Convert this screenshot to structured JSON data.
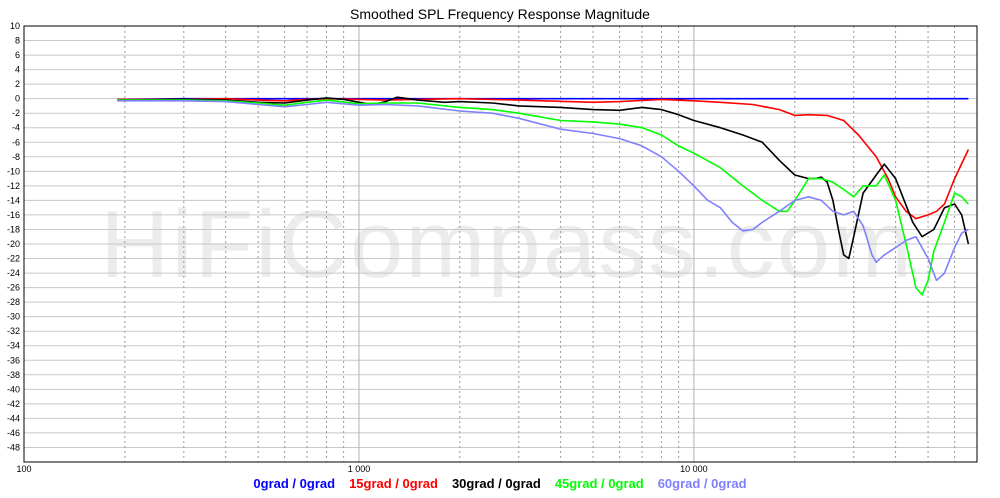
{
  "chart_data": {
    "type": "line",
    "title": "Smoothed SPL Frequency Response Magnitude",
    "xlabel": "",
    "ylabel": "",
    "x_scale": "log",
    "xlim": [
      100,
      70000
    ],
    "ylim": [
      -50,
      10
    ],
    "x_ticks": [
      {
        "value": 100,
        "label": "100"
      },
      {
        "value": 1000,
        "label": "1 000"
      },
      {
        "value": 10000,
        "label": "10 000"
      }
    ],
    "y_ticks": [
      10,
      8,
      6,
      4,
      2,
      0,
      -2,
      -4,
      -6,
      -8,
      -10,
      -12,
      -14,
      -16,
      -18,
      -20,
      -22,
      -24,
      -26,
      -28,
      -30,
      -32,
      -34,
      -36,
      -38,
      -40,
      -42,
      -44,
      -46,
      -48
    ],
    "grid": true,
    "legend_position": "bottom",
    "watermark": "HiFiCompass.com",
    "series": [
      {
        "name": "0grad / 0grad",
        "color": "#0000ff",
        "points": [
          [
            190,
            -0.1
          ],
          [
            300,
            0
          ],
          [
            500,
            0
          ],
          [
            1000,
            0
          ],
          [
            2000,
            0
          ],
          [
            5000,
            0
          ],
          [
            10000,
            0
          ],
          [
            20000,
            0
          ],
          [
            40000,
            0
          ],
          [
            66000,
            0
          ]
        ]
      },
      {
        "name": "15grad / 0grad",
        "color": "#ff0000",
        "points": [
          [
            190,
            -0.1
          ],
          [
            300,
            -0.1
          ],
          [
            400,
            0
          ],
          [
            500,
            -0.2
          ],
          [
            600,
            -0.3
          ],
          [
            700,
            -0.1
          ],
          [
            800,
            0
          ],
          [
            1000,
            -0.1
          ],
          [
            1200,
            -0.2
          ],
          [
            1500,
            -0.1
          ],
          [
            2000,
            0
          ],
          [
            3000,
            -0.2
          ],
          [
            5000,
            -0.5
          ],
          [
            6000,
            -0.4
          ],
          [
            8000,
            -0.1
          ],
          [
            10000,
            -0.3
          ],
          [
            12000,
            -0.5
          ],
          [
            15000,
            -0.8
          ],
          [
            18000,
            -1.5
          ],
          [
            20000,
            -2.3
          ],
          [
            22000,
            -2.2
          ],
          [
            25000,
            -2.3
          ],
          [
            28000,
            -3
          ],
          [
            31000,
            -5
          ],
          [
            35000,
            -8
          ],
          [
            38000,
            -11
          ],
          [
            40000,
            -13.5
          ],
          [
            43000,
            -15.5
          ],
          [
            46000,
            -16.5
          ],
          [
            50000,
            -16
          ],
          [
            53000,
            -15.5
          ],
          [
            56000,
            -14.5
          ],
          [
            60000,
            -11
          ],
          [
            66000,
            -7
          ]
        ]
      },
      {
        "name": "30grad / 0grad",
        "color": "#000000",
        "points": [
          [
            190,
            -0.2
          ],
          [
            300,
            -0.1
          ],
          [
            400,
            -0.2
          ],
          [
            500,
            -0.5
          ],
          [
            600,
            -0.6
          ],
          [
            700,
            -0.2
          ],
          [
            800,
            0.1
          ],
          [
            900,
            -0.1
          ],
          [
            1000,
            -0.5
          ],
          [
            1100,
            -0.8
          ],
          [
            1200,
            -0.4
          ],
          [
            1300,
            0.2
          ],
          [
            1500,
            -0.2
          ],
          [
            1800,
            -0.5
          ],
          [
            2000,
            -0.4
          ],
          [
            2500,
            -0.6
          ],
          [
            3000,
            -1
          ],
          [
            4000,
            -1.2
          ],
          [
            5000,
            -1.5
          ],
          [
            6000,
            -1.6
          ],
          [
            7000,
            -1.2
          ],
          [
            8000,
            -1.5
          ],
          [
            9000,
            -2.2
          ],
          [
            10000,
            -3
          ],
          [
            12000,
            -4
          ],
          [
            14000,
            -5
          ],
          [
            16000,
            -6
          ],
          [
            18000,
            -8.5
          ],
          [
            20000,
            -10.5
          ],
          [
            22000,
            -11
          ],
          [
            23000,
            -11
          ],
          [
            24000,
            -10.8
          ],
          [
            25000,
            -11.5
          ],
          [
            26000,
            -14
          ],
          [
            27000,
            -18
          ],
          [
            28000,
            -21.5
          ],
          [
            29000,
            -22
          ],
          [
            30000,
            -19
          ],
          [
            32000,
            -13
          ],
          [
            35000,
            -10.5
          ],
          [
            37000,
            -9
          ],
          [
            40000,
            -11
          ],
          [
            45000,
            -17
          ],
          [
            48000,
            -19
          ],
          [
            52000,
            -18
          ],
          [
            56000,
            -15
          ],
          [
            60000,
            -14.5
          ],
          [
            63000,
            -16
          ],
          [
            66000,
            -20
          ]
        ]
      },
      {
        "name": "45grad / 0grad",
        "color": "#00ff00",
        "points": [
          [
            190,
            -0.2
          ],
          [
            300,
            -0.2
          ],
          [
            400,
            -0.3
          ],
          [
            500,
            -0.6
          ],
          [
            600,
            -0.9
          ],
          [
            700,
            -0.5
          ],
          [
            800,
            -0.2
          ],
          [
            1000,
            -0.7
          ],
          [
            1200,
            -0.6
          ],
          [
            1500,
            -0.6
          ],
          [
            2000,
            -1.2
          ],
          [
            2500,
            -1.5
          ],
          [
            3000,
            -2
          ],
          [
            4000,
            -3
          ],
          [
            5000,
            -3.2
          ],
          [
            6000,
            -3.5
          ],
          [
            7000,
            -4
          ],
          [
            8000,
            -5
          ],
          [
            9000,
            -6.5
          ],
          [
            10000,
            -7.5
          ],
          [
            12000,
            -9.5
          ],
          [
            14000,
            -12
          ],
          [
            16000,
            -14
          ],
          [
            18000,
            -15.5
          ],
          [
            19000,
            -15.5
          ],
          [
            20000,
            -14
          ],
          [
            21000,
            -12.5
          ],
          [
            22000,
            -11
          ],
          [
            24000,
            -11
          ],
          [
            26000,
            -11.5
          ],
          [
            28000,
            -12.5
          ],
          [
            30000,
            -13.5
          ],
          [
            32000,
            -12
          ],
          [
            35000,
            -12
          ],
          [
            37000,
            -10.5
          ],
          [
            40000,
            -14
          ],
          [
            43000,
            -20
          ],
          [
            46000,
            -26
          ],
          [
            48000,
            -27
          ],
          [
            50000,
            -25
          ],
          [
            52000,
            -21
          ],
          [
            56000,
            -17
          ],
          [
            60000,
            -13
          ],
          [
            63000,
            -13.5
          ],
          [
            66000,
            -14.5
          ]
        ]
      },
      {
        "name": "60grad / 0grad",
        "color": "#8080ff",
        "points": [
          [
            190,
            -0.3
          ],
          [
            300,
            -0.3
          ],
          [
            400,
            -0.4
          ],
          [
            500,
            -0.8
          ],
          [
            600,
            -1.1
          ],
          [
            700,
            -0.8
          ],
          [
            800,
            -0.5
          ],
          [
            1000,
            -0.9
          ],
          [
            1200,
            -0.8
          ],
          [
            1500,
            -1
          ],
          [
            2000,
            -1.7
          ],
          [
            2500,
            -2
          ],
          [
            3000,
            -2.7
          ],
          [
            4000,
            -4.2
          ],
          [
            5000,
            -4.8
          ],
          [
            6000,
            -5.5
          ],
          [
            7000,
            -6.5
          ],
          [
            8000,
            -8
          ],
          [
            9000,
            -10
          ],
          [
            10000,
            -12
          ],
          [
            11000,
            -14
          ],
          [
            12000,
            -15
          ],
          [
            13000,
            -17
          ],
          [
            14000,
            -18.2
          ],
          [
            15000,
            -18
          ],
          [
            16000,
            -17
          ],
          [
            18000,
            -15.5
          ],
          [
            20000,
            -14
          ],
          [
            22000,
            -13.5
          ],
          [
            24000,
            -14
          ],
          [
            26000,
            -15.5
          ],
          [
            28000,
            -16
          ],
          [
            30000,
            -15.5
          ],
          [
            32000,
            -17.5
          ],
          [
            33000,
            -19.5
          ],
          [
            34000,
            -21.5
          ],
          [
            35000,
            -22.5
          ],
          [
            37000,
            -21.5
          ],
          [
            40000,
            -20.5
          ],
          [
            43000,
            -19.5
          ],
          [
            46000,
            -19
          ],
          [
            50000,
            -22
          ],
          [
            53000,
            -25
          ],
          [
            56000,
            -24
          ],
          [
            60000,
            -20.5
          ],
          [
            63000,
            -18.5
          ],
          [
            66000,
            -18
          ]
        ]
      }
    ]
  }
}
